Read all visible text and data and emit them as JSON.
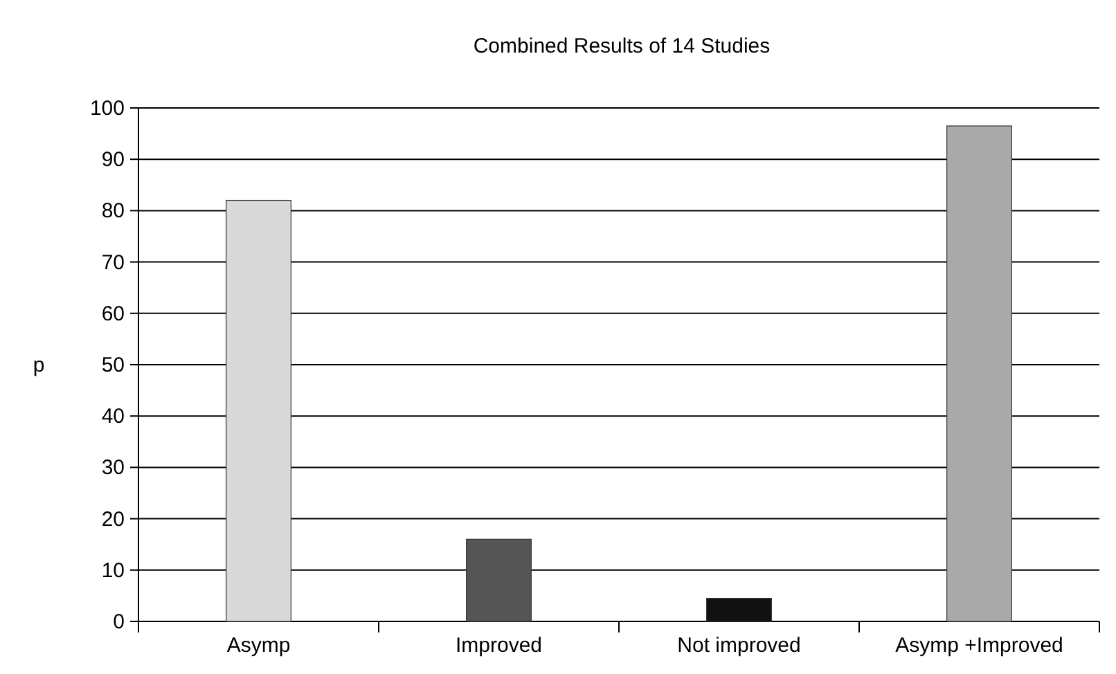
{
  "chart_data": {
    "type": "bar",
    "title": "Combined Results of 14 Studies",
    "ylabel": "p",
    "categories": [
      "Asymp",
      "Improved",
      "Not improved",
      "Asymp +Improved"
    ],
    "values": [
      82,
      16,
      4.5,
      96.5
    ],
    "colors": [
      "#d9d9d9",
      "#555555",
      "#111111",
      "#a9a9a9"
    ],
    "ylim": [
      0,
      100
    ],
    "yticks": [
      0,
      10,
      20,
      30,
      40,
      50,
      60,
      70,
      80,
      90,
      100
    ],
    "grid": "y"
  }
}
